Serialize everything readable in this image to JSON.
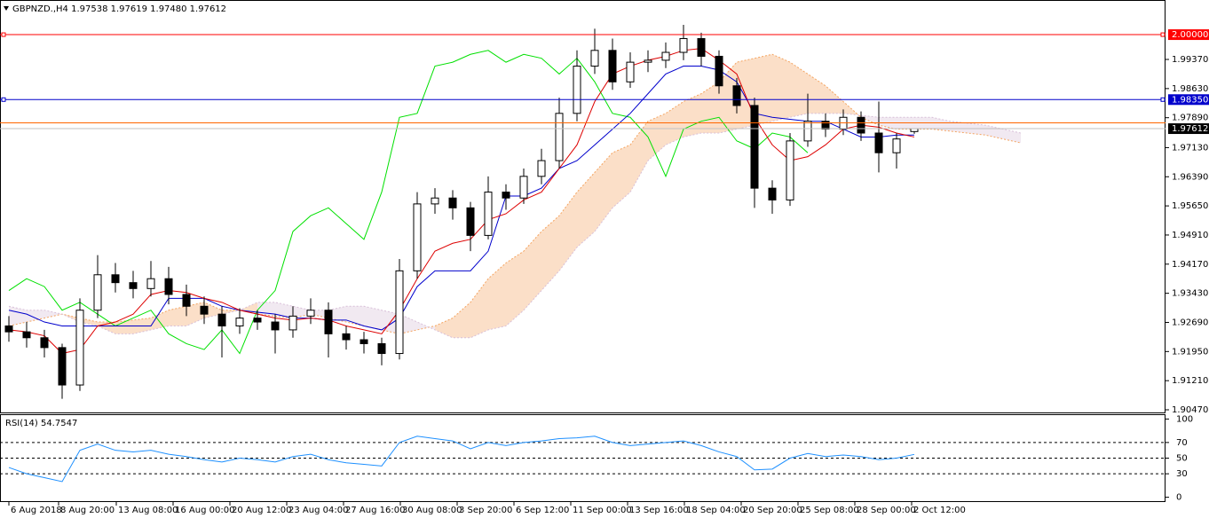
{
  "chart_data": [
    {
      "type": "candlestick",
      "title": "GBPNZD.,H4  1.97538 1.97619 1.97480 1.97612",
      "open": [
        1.926,
        1.9245,
        1.923,
        1.9205,
        1.911,
        1.93,
        1.939,
        1.937,
        1.9355,
        1.938,
        1.934,
        1.931,
        1.929,
        1.926,
        1.928,
        1.927,
        1.925,
        1.9285,
        1.93,
        1.924,
        1.9225,
        1.9215,
        1.919,
        1.94,
        1.957,
        1.9585,
        1.956,
        1.949,
        1.96,
        1.9585,
        1.964,
        1.968,
        1.98,
        1.992,
        1.996,
        1.988,
        1.993,
        1.9935,
        1.9955,
        1.999,
        1.9945,
        1.987,
        1.982,
        1.961,
        1.958,
        1.973,
        1.978,
        1.976,
        1.979,
        1.975,
        1.97,
        1.97538
      ],
      "high": [
        1.9285,
        1.927,
        1.925,
        1.9215,
        1.933,
        1.944,
        1.942,
        1.94,
        1.9425,
        1.941,
        1.9365,
        1.9335,
        1.931,
        1.9305,
        1.93,
        1.929,
        1.931,
        1.933,
        1.932,
        1.926,
        1.9245,
        1.923,
        1.943,
        1.96,
        1.961,
        1.9605,
        1.9575,
        1.964,
        1.962,
        1.966,
        1.971,
        1.984,
        1.996,
        2.0015,
        1.999,
        1.9955,
        1.996,
        1.998,
        2.0025,
        2.0005,
        1.996,
        1.989,
        1.984,
        1.963,
        1.975,
        1.985,
        1.98,
        1.981,
        1.9805,
        1.983,
        1.975,
        1.97619
      ],
      "low": [
        1.922,
        1.9205,
        1.918,
        1.9075,
        1.9095,
        1.928,
        1.9345,
        1.933,
        1.9335,
        1.9315,
        1.9285,
        1.9265,
        1.918,
        1.924,
        1.925,
        1.919,
        1.923,
        1.9265,
        1.918,
        1.92,
        1.919,
        1.916,
        1.9175,
        1.938,
        1.9545,
        1.953,
        1.945,
        1.948,
        1.9555,
        1.957,
        1.962,
        1.966,
        1.978,
        1.99,
        1.986,
        1.9865,
        1.9905,
        1.9915,
        1.9935,
        1.992,
        1.985,
        1.98,
        1.956,
        1.9545,
        1.9565,
        1.9715,
        1.974,
        1.9745,
        1.973,
        1.965,
        1.966,
        1.9748
      ],
      "close": [
        1.9245,
        1.923,
        1.9205,
        1.911,
        1.93,
        1.939,
        1.937,
        1.9355,
        1.938,
        1.934,
        1.931,
        1.929,
        1.926,
        1.928,
        1.927,
        1.925,
        1.9285,
        1.93,
        1.924,
        1.9225,
        1.9215,
        1.919,
        1.94,
        1.957,
        1.9585,
        1.956,
        1.949,
        1.96,
        1.9585,
        1.964,
        1.968,
        1.98,
        1.992,
        1.996,
        1.988,
        1.993,
        1.9935,
        1.9955,
        1.999,
        1.9945,
        1.987,
        1.982,
        1.961,
        1.958,
        1.973,
        1.978,
        1.976,
        1.979,
        1.975,
        1.97,
        1.9735,
        1.97612
      ],
      "tenkan": {
        "color": "#dd0000",
        "values": [
          1.925,
          1.9245,
          1.9235,
          1.919,
          1.92,
          1.926,
          1.927,
          1.929,
          1.934,
          1.935,
          1.9345,
          1.933,
          1.932,
          1.93,
          1.929,
          1.928,
          1.9275,
          1.928,
          1.9275,
          1.926,
          1.925,
          1.924,
          1.93,
          1.938,
          1.945,
          1.947,
          1.948,
          1.953,
          1.9545,
          1.958,
          1.96,
          1.966,
          1.972,
          1.983,
          1.99,
          1.992,
          1.9935,
          1.9945,
          1.996,
          1.9965,
          1.9935,
          1.99,
          1.979,
          1.972,
          1.968,
          1.969,
          1.972,
          1.976,
          1.977,
          1.9765,
          1.975,
          1.974
        ]
      },
      "kijun": {
        "color": "#0000cc",
        "values": [
          1.93,
          1.929,
          1.927,
          1.926,
          1.926,
          1.926,
          1.926,
          1.926,
          1.926,
          1.933,
          1.933,
          1.933,
          1.931,
          1.93,
          1.9295,
          1.929,
          1.928,
          1.928,
          1.9275,
          1.9275,
          1.926,
          1.925,
          1.928,
          1.936,
          1.94,
          1.94,
          1.94,
          1.945,
          1.959,
          1.959,
          1.961,
          1.966,
          1.968,
          1.972,
          1.976,
          1.98,
          1.985,
          1.99,
          1.992,
          1.992,
          1.991,
          1.988,
          1.98,
          1.979,
          1.9785,
          1.978,
          1.978,
          1.976,
          1.974,
          1.974,
          1.9745,
          1.9745
        ]
      },
      "chikou": {
        "color": "#00e000",
        "values": [
          1.935,
          1.938,
          1.936,
          1.93,
          1.932,
          1.929,
          1.926,
          1.928,
          1.93,
          1.924,
          1.9215,
          1.92,
          1.925,
          1.919,
          1.93,
          1.935,
          1.95,
          1.954,
          1.956,
          1.952,
          1.948,
          1.96,
          1.979,
          1.98,
          1.992,
          1.993,
          1.995,
          1.996,
          1.993,
          1.995,
          1.994,
          1.99,
          1.994,
          1.988,
          1.98,
          1.979,
          1.974,
          1.964,
          1.976,
          1.978,
          1.979,
          1.973,
          1.971,
          1.975,
          1.974,
          1.97
        ]
      },
      "span_a": {
        "color": "#f4a460",
        "values": [
          1.926,
          1.927,
          1.928,
          1.929,
          1.928,
          1.927,
          1.927,
          1.9275,
          1.928,
          1.93,
          1.931,
          1.932,
          1.93,
          1.93,
          1.929,
          1.9285,
          1.928,
          1.929,
          1.928,
          1.927,
          1.926,
          1.925,
          1.924,
          1.925,
          1.926,
          1.928,
          1.932,
          1.938,
          1.942,
          1.945,
          1.95,
          1.954,
          1.96,
          1.965,
          1.97,
          1.972,
          1.978,
          1.98,
          1.983,
          1.985,
          1.988,
          1.993,
          1.994,
          1.995,
          1.993,
          1.99,
          1.987,
          1.983,
          1.979,
          1.977,
          1.976,
          1.976,
          1.976,
          1.9755,
          1.975,
          1.9745,
          1.9735,
          1.9725
        ]
      },
      "span_b": {
        "color": "#d8bfd8",
        "values": [
          1.931,
          1.93,
          1.93,
          1.929,
          1.927,
          1.926,
          1.924,
          1.924,
          1.925,
          1.926,
          1.926,
          1.928,
          1.929,
          1.93,
          1.932,
          1.932,
          1.931,
          1.93,
          1.93,
          1.931,
          1.931,
          1.93,
          1.929,
          1.927,
          1.925,
          1.923,
          1.923,
          1.925,
          1.926,
          1.93,
          1.935,
          1.94,
          1.946,
          1.95,
          1.956,
          1.96,
          1.968,
          1.972,
          1.974,
          1.975,
          1.975,
          1.976,
          1.977,
          1.978,
          1.979,
          1.98,
          1.98,
          1.98,
          1.9795,
          1.979,
          1.979,
          1.979,
          1.979,
          1.978,
          1.9775,
          1.977,
          1.976,
          1.975
        ]
      },
      "hlines": [
        {
          "value": 2.0,
          "label": "2.00000",
          "color": "#ff0000"
        },
        {
          "value": 1.9835,
          "label": "1.98350",
          "color": "#0000cc"
        },
        {
          "value": 1.9776,
          "color": "#ff6600"
        },
        {
          "value": 1.97612,
          "label": "1.97612",
          "color": "#000000"
        }
      ],
      "xlim": [
        -0.5,
        65.15
      ],
      "xticks": [
        {
          "value": 0,
          "label": "6 Aug 2018"
        },
        {
          "value": 2.8,
          "label": "8 Aug 20:00"
        },
        {
          "value": 6.05,
          "label": "13 Aug 08:00"
        },
        {
          "value": 9.25,
          "label": "16 Aug 00:00"
        },
        {
          "value": 12.45,
          "label": "20 Aug 12:00"
        },
        {
          "value": 15.65,
          "label": "23 Aug 04:00"
        },
        {
          "value": 18.85,
          "label": "27 Aug 16:00"
        },
        {
          "value": 22.05,
          "label": "30 Aug 08:00"
        },
        {
          "value": 25.25,
          "label": "3 Sep 20:00"
        },
        {
          "value": 28.45,
          "label": "6 Sep 12:00"
        },
        {
          "value": 31.65,
          "label": "11 Sep 00:00"
        },
        {
          "value": 34.85,
          "label": "13 Sep 16:00"
        },
        {
          "value": 38.05,
          "label": "18 Sep 04:00"
        },
        {
          "value": 41.25,
          "label": "20 Sep 20:00"
        },
        {
          "value": 44.45,
          "label": "25 Sep 08:00"
        },
        {
          "value": 47.65,
          "label": "28 Sep 00:00"
        },
        {
          "value": 50.85,
          "label": "2 Oct 12:00"
        }
      ],
      "ylim": [
        1.9038,
        2.0088
      ],
      "yticks": [
        {
          "value": 1.9937,
          "label": "1.99370"
        },
        {
          "value": 1.9863,
          "label": "1.98630"
        },
        {
          "value": 1.9789,
          "label": "1.97890"
        },
        {
          "value": 1.9713,
          "label": "1.97130"
        },
        {
          "value": 1.9639,
          "label": "1.96390"
        },
        {
          "value": 1.9565,
          "label": "1.95650"
        },
        {
          "value": 1.9491,
          "label": "1.94910"
        },
        {
          "value": 1.9417,
          "label": "1.94170"
        },
        {
          "value": 1.9343,
          "label": "1.93430"
        },
        {
          "value": 1.9269,
          "label": "1.92690"
        },
        {
          "value": 1.9195,
          "label": "1.91950"
        },
        {
          "value": 1.9121,
          "label": "1.91210"
        },
        {
          "value": 1.9047,
          "label": "1.90470"
        }
      ]
    },
    {
      "type": "line",
      "title": "RSI(14) 54.7547",
      "color": "#1e90ff",
      "values": [
        38,
        30,
        25,
        20,
        60,
        68,
        60,
        58,
        60,
        55,
        52,
        48,
        45,
        50,
        48,
        45,
        52,
        55,
        48,
        44,
        42,
        40,
        70,
        78,
        75,
        72,
        62,
        70,
        66,
        70,
        72,
        75,
        76,
        78,
        70,
        66,
        68,
        70,
        72,
        66,
        58,
        52,
        35,
        36,
        50,
        56,
        52,
        54,
        52,
        48,
        50,
        54.7547
      ],
      "ylim": [
        -5,
        105
      ],
      "yticks": [
        100,
        70,
        50,
        30,
        0
      ]
    }
  ]
}
